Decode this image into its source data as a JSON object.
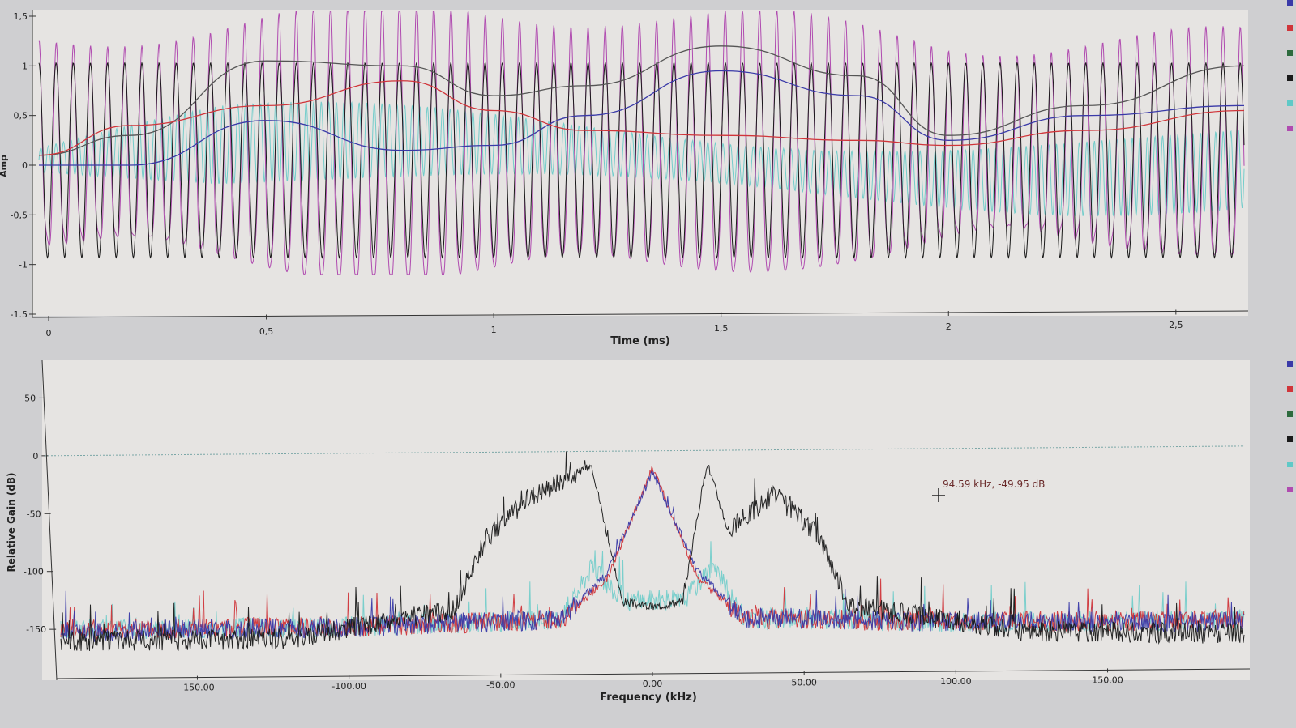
{
  "colors": {
    "background": "#cfcfd1",
    "plot_bg": "#e6e4e2",
    "axis": "#333333",
    "magenta": "#b04bb0",
    "black": "#1a1a1a",
    "cyan": "#5fc9c7",
    "red": "#d0353a",
    "blue": "#3a3aa8",
    "gray": "#555555",
    "green": "#2d6b3d",
    "marker_text": "#6a2a2a"
  },
  "legend": [
    "blue",
    "red",
    "green",
    "black",
    "cyan",
    "magenta"
  ],
  "chart_data": [
    {
      "type": "line",
      "title": "",
      "xlabel": "Time (ms)",
      "ylabel": "Amp",
      "xlim": [
        0,
        2.65
      ],
      "ylim": [
        -1.5,
        1.5
      ],
      "x_ticks": [
        "0",
        "0,5",
        "1",
        "1,5",
        "2",
        "2,5"
      ],
      "y_ticks": [
        "1,5",
        "1",
        "0,5",
        "0",
        "-0,5",
        "-1",
        "-1.5"
      ],
      "x_tick_values": [
        0,
        0.5,
        1,
        1.5,
        2,
        2.5
      ],
      "y_tick_values": [
        1.5,
        1,
        0.5,
        0,
        -0.5,
        -1,
        -1.5
      ],
      "grid": false,
      "legend": "right",
      "series": [
        {
          "color": "black",
          "description": "carrier sine wave, amplitude ~1, ~26 kHz"
        },
        {
          "color": "magenta",
          "description": "modulated signal, amplitude up to ~1.5"
        },
        {
          "color": "cyan",
          "description": "high-frequency component around 0"
        },
        {
          "color": "gray",
          "x": [
            0,
            0.2,
            0.5,
            0.8,
            1.0,
            1.2,
            1.5,
            1.8,
            2.0,
            2.3,
            2.65
          ],
          "y": [
            0.1,
            0.3,
            1.05,
            1.0,
            0.7,
            0.8,
            1.2,
            0.9,
            0.3,
            0.6,
            1.0
          ]
        },
        {
          "color": "blue",
          "x": [
            0,
            0.2,
            0.5,
            0.8,
            1.0,
            1.2,
            1.5,
            1.8,
            2.0,
            2.3,
            2.65
          ],
          "y": [
            0.0,
            0.0,
            0.45,
            0.15,
            0.2,
            0.5,
            0.95,
            0.7,
            0.25,
            0.5,
            0.6
          ]
        },
        {
          "color": "red",
          "x": [
            0,
            0.2,
            0.5,
            0.8,
            1.0,
            1.2,
            1.5,
            1.8,
            2.0,
            2.3,
            2.65
          ],
          "y": [
            0.1,
            0.4,
            0.6,
            0.85,
            0.55,
            0.35,
            0.3,
            0.25,
            0.2,
            0.35,
            0.55
          ]
        }
      ]
    },
    {
      "type": "line",
      "title": "",
      "xlabel": "Frequency (kHz)",
      "ylabel": "Relative Gain (dB)",
      "xlim": [
        -195,
        195
      ],
      "ylim": [
        -180,
        65
      ],
      "x_ticks": [
        "-150.00",
        "-100.00",
        "-50.00",
        "0.00",
        "50.00",
        "100.00",
        "150.00"
      ],
      "x_tick_values": [
        -150,
        -100,
        -50,
        0,
        50,
        100,
        150
      ],
      "y_ticks": [
        "50",
        "0",
        "-50",
        "-100",
        "-150"
      ],
      "y_tick_values": [
        50,
        0,
        -50,
        -100,
        -150
      ],
      "reference_line_db": 0,
      "grid": false,
      "legend": "right",
      "series": [
        {
          "color": "black",
          "description": "wide spectrum with peaks near -20 kHz and +18 kHz reaching about -10 dB, lobes at +/-40 kHz near -35 dB",
          "x": [
            -190,
            -120,
            -65,
            -55,
            -40,
            -20,
            -10,
            0,
            10,
            18,
            25,
            40,
            55,
            65,
            120,
            190
          ],
          "y": [
            -160,
            -160,
            -135,
            -75,
            -38,
            -12,
            -130,
            -135,
            -130,
            -10,
            -70,
            -38,
            -75,
            -135,
            -158,
            -162
          ]
        },
        {
          "color": "red",
          "description": "central peak near 0 kHz at about -15 dB",
          "x": [
            -190,
            -100,
            -30,
            -15,
            0,
            15,
            30,
            100,
            190
          ],
          "y": [
            -150,
            -150,
            -145,
            -110,
            -15,
            -110,
            -145,
            -150,
            -150
          ]
        },
        {
          "color": "blue",
          "x": [
            -190,
            -100,
            -30,
            -15,
            0,
            15,
            30,
            100,
            190
          ],
          "y": [
            -152,
            -150,
            -145,
            -105,
            -18,
            -105,
            -145,
            -150,
            -152
          ]
        },
        {
          "color": "cyan",
          "x": [
            -190,
            -100,
            -30,
            -20,
            -10,
            0,
            10,
            20,
            30,
            100,
            190
          ],
          "y": [
            -150,
            -150,
            -145,
            -100,
            -130,
            -128,
            -130,
            -100,
            -145,
            -150,
            -150
          ]
        }
      ],
      "annotation": {
        "text": "94.59 kHz, -49.95 dB",
        "x": 94.59,
        "y": -49.95
      }
    }
  ]
}
